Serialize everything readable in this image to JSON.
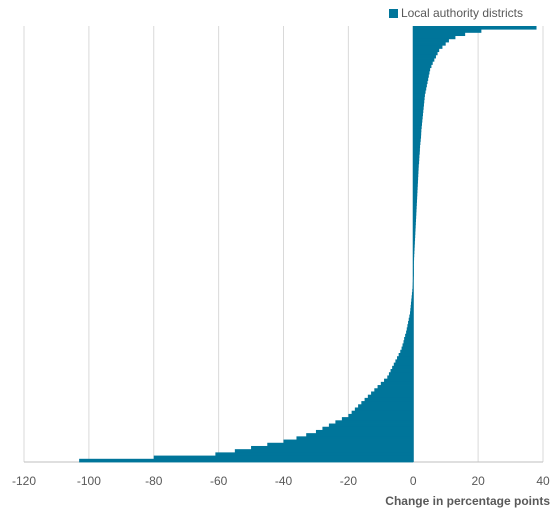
{
  "chart_data": {
    "type": "bar",
    "orientation": "horizontal",
    "description_note": "",
    "series": [
      {
        "name": "Local authority districts",
        "values": [
          38,
          21,
          16,
          13,
          11,
          10,
          9,
          8,
          7.5,
          7,
          6.5,
          6,
          5.6,
          5.2,
          5,
          4.8,
          4.6,
          4.4,
          4.2,
          4,
          3.8,
          3.6,
          3.5,
          3.4,
          3.3,
          3.2,
          3.1,
          3,
          2.9,
          2.8,
          2.7,
          2.6,
          2.5,
          2.45,
          2.4,
          2.3,
          2.2,
          2.1,
          2.05,
          2,
          1.9,
          1.85,
          1.8,
          1.7,
          1.65,
          1.6,
          1.55,
          1.5,
          1.45,
          1.4,
          1.35,
          1.3,
          1.25,
          1.2,
          1.15,
          1.1,
          1.05,
          1,
          0.95,
          0.9,
          0.85,
          0.8,
          0.75,
          0.7,
          0.65,
          0.6,
          0.55,
          0.5,
          0.45,
          0.4,
          0.35,
          0.3,
          0.25,
          0.2,
          0.15,
          0.1,
          0.05,
          0,
          -0.05,
          -0.1,
          -0.15,
          -0.2,
          -0.3,
          -0.4,
          -0.5,
          -0.6,
          -0.7,
          -0.8,
          -0.9,
          -1,
          -1.2,
          -1.4,
          -1.6,
          -1.8,
          -2,
          -2.2,
          -2.5,
          -2.8,
          -3,
          -3.3,
          -3.6,
          -4,
          -4.5,
          -5,
          -5.5,
          -6,
          -6.5,
          -7,
          -7.5,
          -8,
          -9,
          -10,
          -11,
          -12,
          -13,
          -14,
          -15,
          -16,
          -17,
          -18,
          -19,
          -20,
          -22,
          -24,
          -26,
          -28,
          -30,
          -33,
          -36,
          -40,
          -45,
          -50,
          -55,
          -61,
          -80,
          -103
        ]
      }
    ],
    "xlabel": "Change in percentage points",
    "ylabel": "",
    "title": "",
    "xlim": [
      -120,
      40
    ],
    "xticks": [
      -120,
      -100,
      -80,
      -60,
      -40,
      -20,
      0,
      20,
      40
    ],
    "grid": true,
    "legend_position": "top-right",
    "colors": {
      "bar": "#00759a",
      "grid": "#d9d9d9",
      "axis": "#bfbfbf",
      "tick_label": "#595959"
    }
  }
}
